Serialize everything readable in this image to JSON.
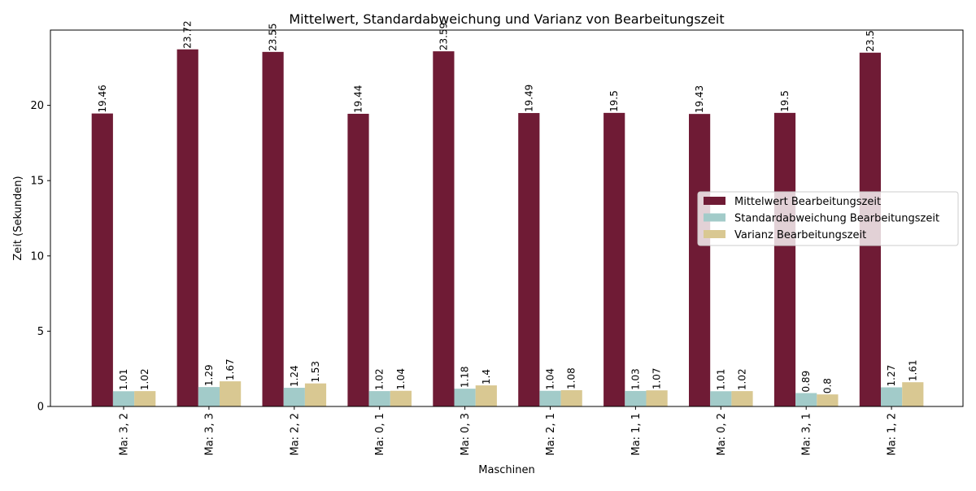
{
  "chart_data": {
    "type": "bar",
    "title": "Mittelwert, Standardabweichung und Varianz von Bearbeitungszeit",
    "xlabel": "Maschinen",
    "ylabel": "Zeit (Sekunden)",
    "ylim": [
      0,
      25
    ],
    "yticks": [
      0,
      5,
      10,
      15,
      20
    ],
    "grid": false,
    "legend_position": "center-right",
    "categories": [
      "Ma: 3, 2",
      "Ma: 3, 3",
      "Ma: 2, 2",
      "Ma: 0, 1",
      "Ma: 0, 3",
      "Ma: 2, 1",
      "Ma: 1, 1",
      "Ma: 0, 2",
      "Ma: 3, 1",
      "Ma: 1, 2"
    ],
    "series": [
      {
        "name": "Mittelwert Bearbeitungszeit",
        "color": "#6f1b35",
        "values": [
          19.46,
          23.72,
          23.55,
          19.44,
          23.59,
          19.49,
          19.5,
          19.43,
          19.5,
          23.5
        ],
        "labels": [
          "19.46",
          "23.72",
          "23.55",
          "19.44",
          "23.59",
          "19.49",
          "19.5",
          "19.43",
          "19.5",
          "23.5"
        ]
      },
      {
        "name": "Standardabweichung Bearbeitungszeit",
        "color": "#a2cbc9",
        "values": [
          1.01,
          1.29,
          1.24,
          1.02,
          1.18,
          1.04,
          1.03,
          1.01,
          0.89,
          1.27
        ],
        "labels": [
          "1.01",
          "1.29",
          "1.24",
          "1.02",
          "1.18",
          "1.04",
          "1.03",
          "1.01",
          "0.89",
          "1.27"
        ]
      },
      {
        "name": "Varianz Bearbeitungszeit",
        "color": "#d9c892",
        "values": [
          1.02,
          1.67,
          1.53,
          1.04,
          1.4,
          1.08,
          1.07,
          1.02,
          0.8,
          1.61
        ],
        "labels": [
          "1.02",
          "1.67",
          "1.53",
          "1.04",
          "1.4",
          "1.08",
          "1.07",
          "1.02",
          "0.8",
          "1.61"
        ]
      }
    ]
  }
}
